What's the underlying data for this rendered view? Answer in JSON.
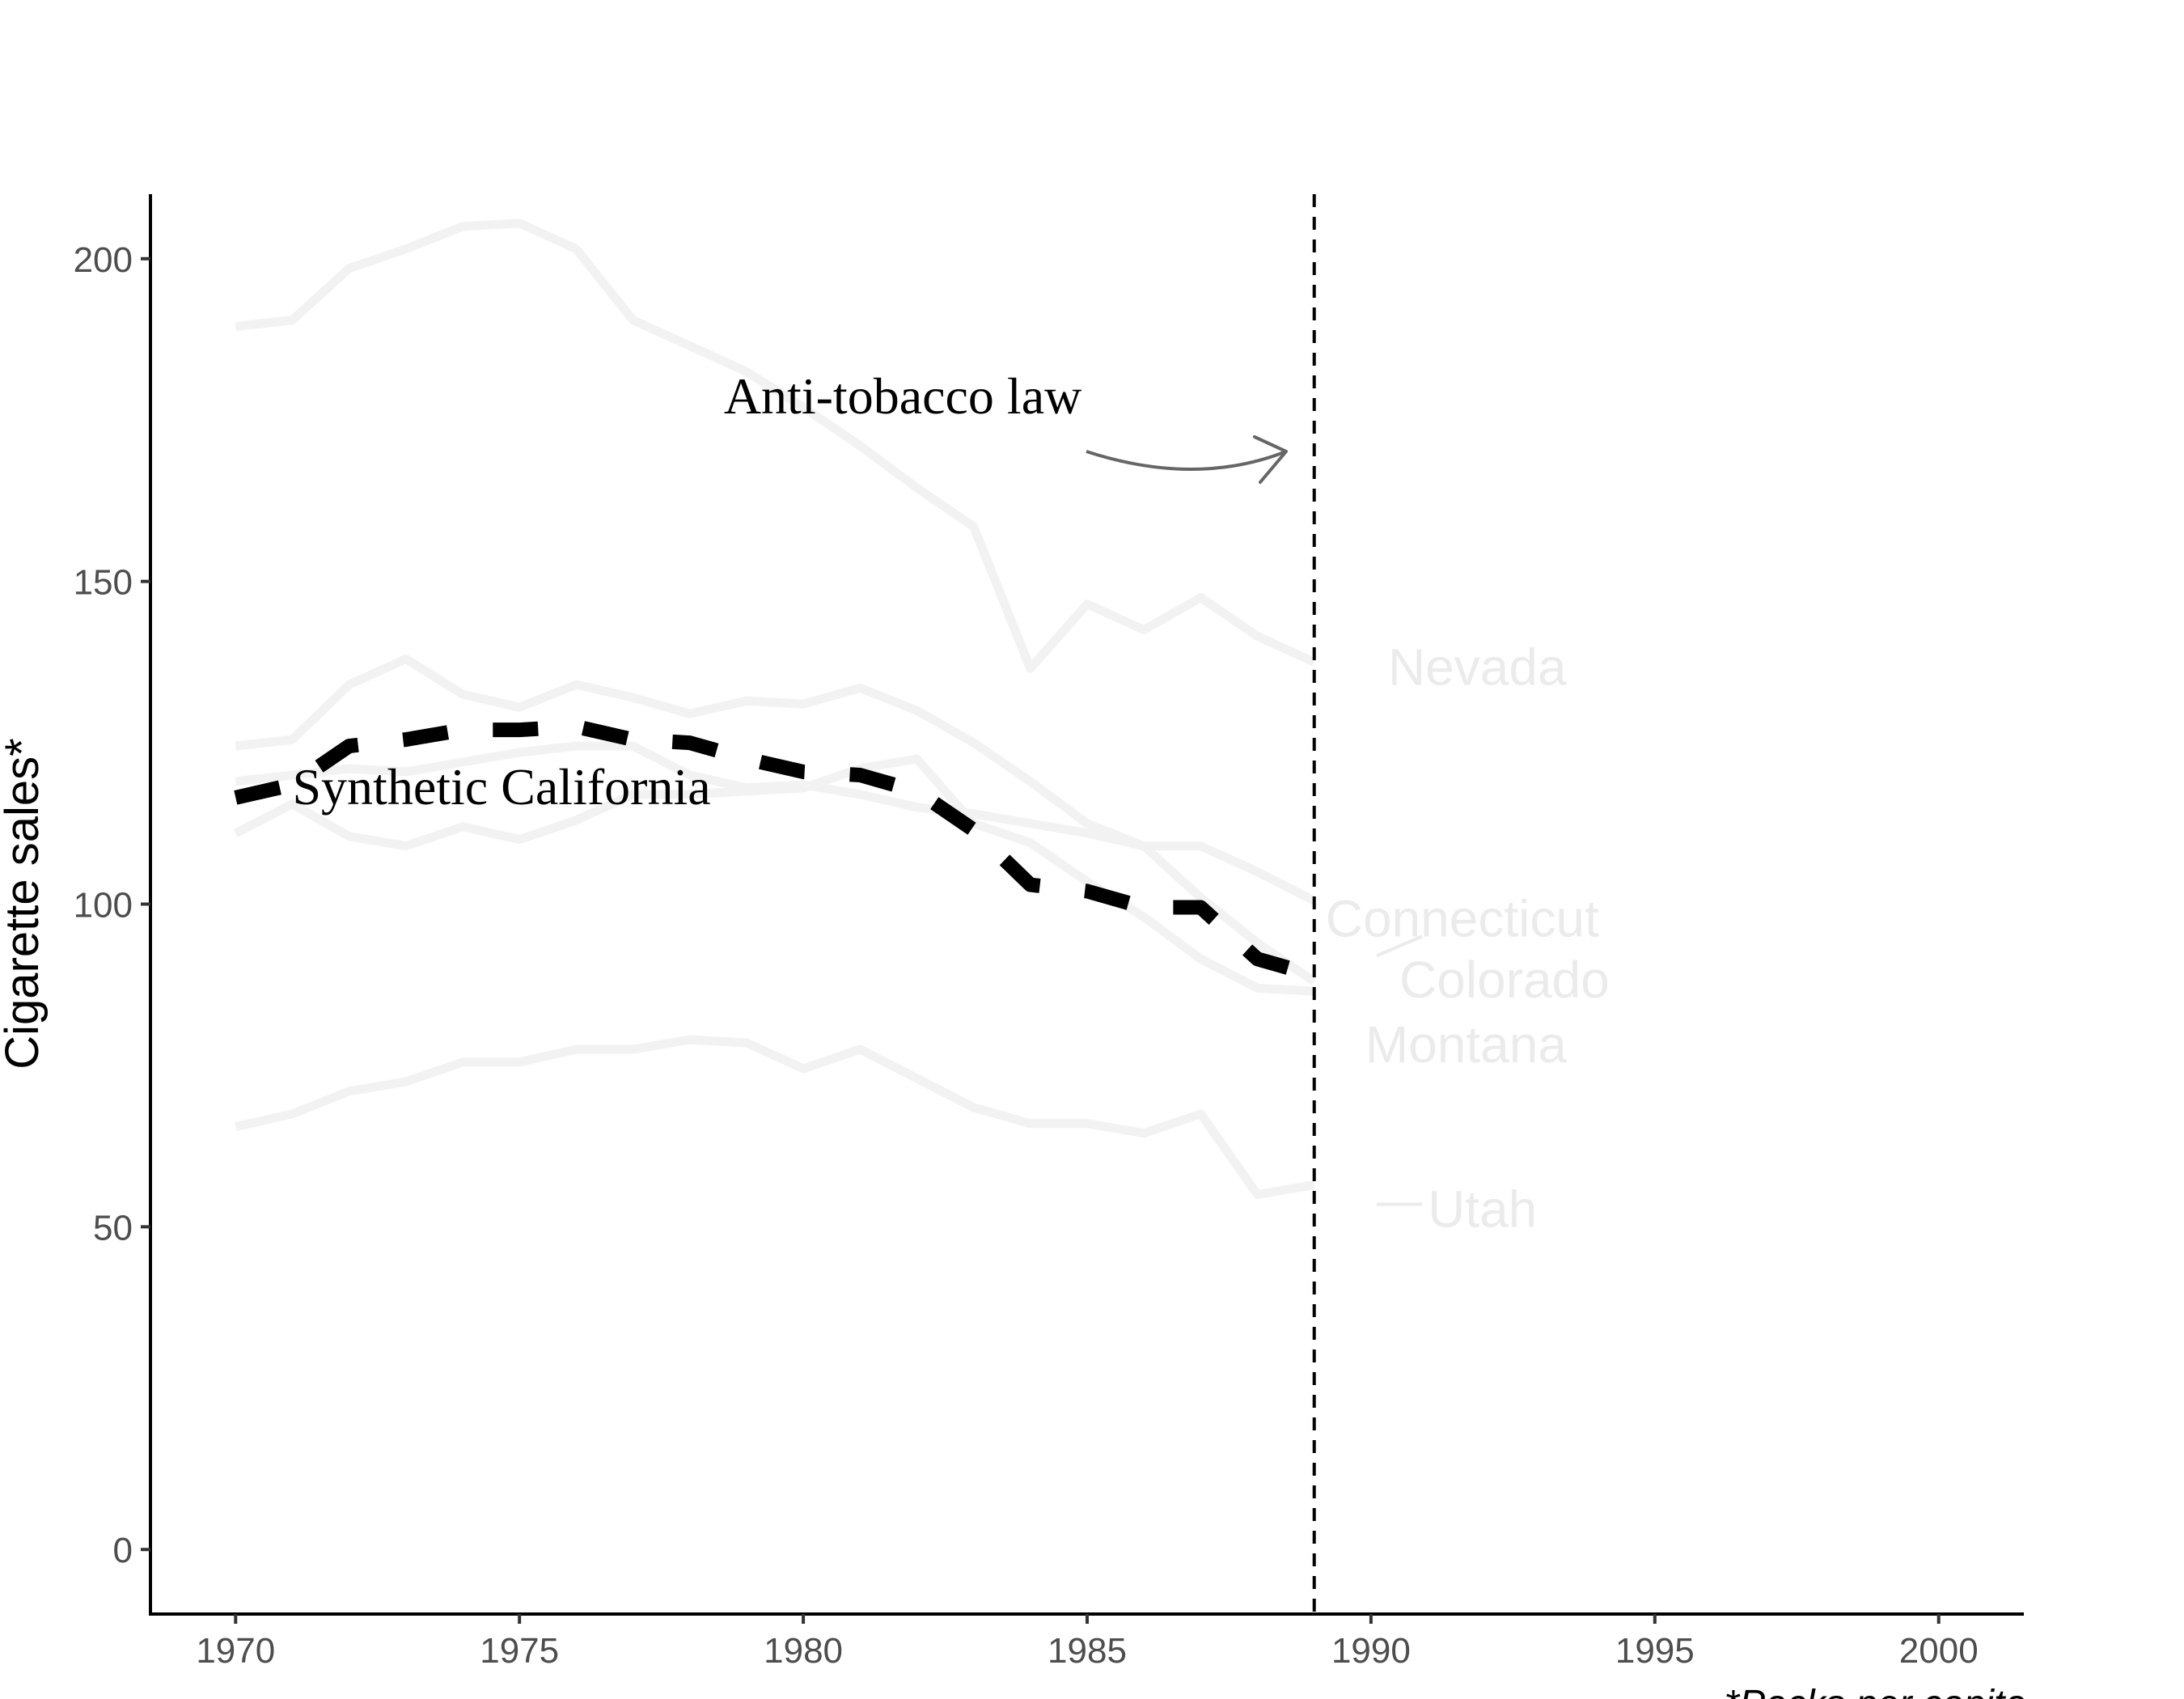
{
  "chart_data": {
    "type": "line",
    "title": "",
    "xlabel": "",
    "ylabel": "Cigarette sales*",
    "caption": "*Packs per capita",
    "xlim": [
      1968.5,
      2001.5
    ],
    "ylim": [
      -10,
      210
    ],
    "x_ticks": [
      1970,
      1975,
      1980,
      1985,
      1990,
      1995,
      2000
    ],
    "y_ticks": [
      0,
      50,
      100,
      150,
      200
    ],
    "grid": false,
    "legend": "none",
    "x": [
      1970,
      1971,
      1972,
      1973,
      1974,
      1975,
      1976,
      1977,
      1978,
      1979,
      1980,
      1981,
      1982,
      1983,
      1984,
      1985,
      1986,
      1987,
      1988,
      1989
    ],
    "series": [
      {
        "name": "Nevada",
        "color": "#f2f2f2",
        "values": [
          189.5,
          190.5,
          198.5,
          201.5,
          205,
          205.5,
          201.5,
          190.5,
          186.5,
          182.5,
          177,
          171,
          164.5,
          158.5,
          136.5,
          146.5,
          142.5,
          147.5,
          141.5,
          137.5
        ]
      },
      {
        "name": "Connecticut",
        "color": "#f2f2f2",
        "values": [
          119,
          120,
          121,
          120.5,
          122,
          123.5,
          124.5,
          124.5,
          120,
          118,
          118.5,
          117,
          115,
          114,
          112.5,
          111,
          109,
          109,
          105,
          100.5
        ]
      },
      {
        "name": "Colorado",
        "color": "#f2f2f2",
        "values": [
          124.5,
          125.5,
          134,
          138,
          132.5,
          130.5,
          134,
          132,
          129.5,
          131.5,
          131,
          133.5,
          130,
          125,
          119,
          112.5,
          109,
          101,
          94,
          88
        ]
      },
      {
        "name": "Montana",
        "color": "#f2f2f2",
        "values": [
          111,
          115.5,
          110.5,
          109,
          112,
          110,
          113,
          117,
          117,
          117.5,
          118,
          121,
          122.5,
          112.5,
          109.5,
          103.5,
          98,
          91.5,
          87,
          86.5
        ]
      },
      {
        "name": "Utah",
        "color": "#f2f2f2",
        "values": [
          65.5,
          67.5,
          71,
          72.5,
          75.5,
          75.5,
          77.5,
          77.5,
          79,
          78.5,
          74.5,
          77.5,
          73,
          68.5,
          66,
          66,
          64.5,
          67.5,
          55,
          56.5
        ]
      },
      {
        "name": "Synthetic California",
        "color": "#000000",
        "dashed": true,
        "values": [
          116.5,
          118.5,
          124.5,
          125.5,
          127,
          127,
          127.5,
          125.5,
          125,
          122.5,
          120.5,
          120,
          117.5,
          111.5,
          103,
          102,
          99.5,
          99.5,
          91.5,
          89
        ]
      }
    ],
    "vline": {
      "x": 1989,
      "style": "dashed",
      "color": "#000000"
    },
    "annotations": [
      {
        "text": "Anti-tobacco law",
        "x": 1978.6,
        "y": 176
      },
      {
        "text": "Synthetic California",
        "x": 1971,
        "y": 115.5
      }
    ],
    "state_labels": [
      {
        "text": "Nevada",
        "x": 1990.3,
        "y": 134,
        "color": "#ebebeb"
      },
      {
        "text": "Connecticut",
        "x": 1989.2,
        "y": 95,
        "color": "#ebebeb"
      },
      {
        "text": "Colorado",
        "x": 1990.5,
        "y": 85.5,
        "color": "#ebebeb"
      },
      {
        "text": "Montana",
        "x": 1989.9,
        "y": 75.5,
        "color": "#ebebeb"
      },
      {
        "text": "Utah",
        "x": 1991,
        "y": 50,
        "color": "#ebebeb"
      }
    ]
  }
}
